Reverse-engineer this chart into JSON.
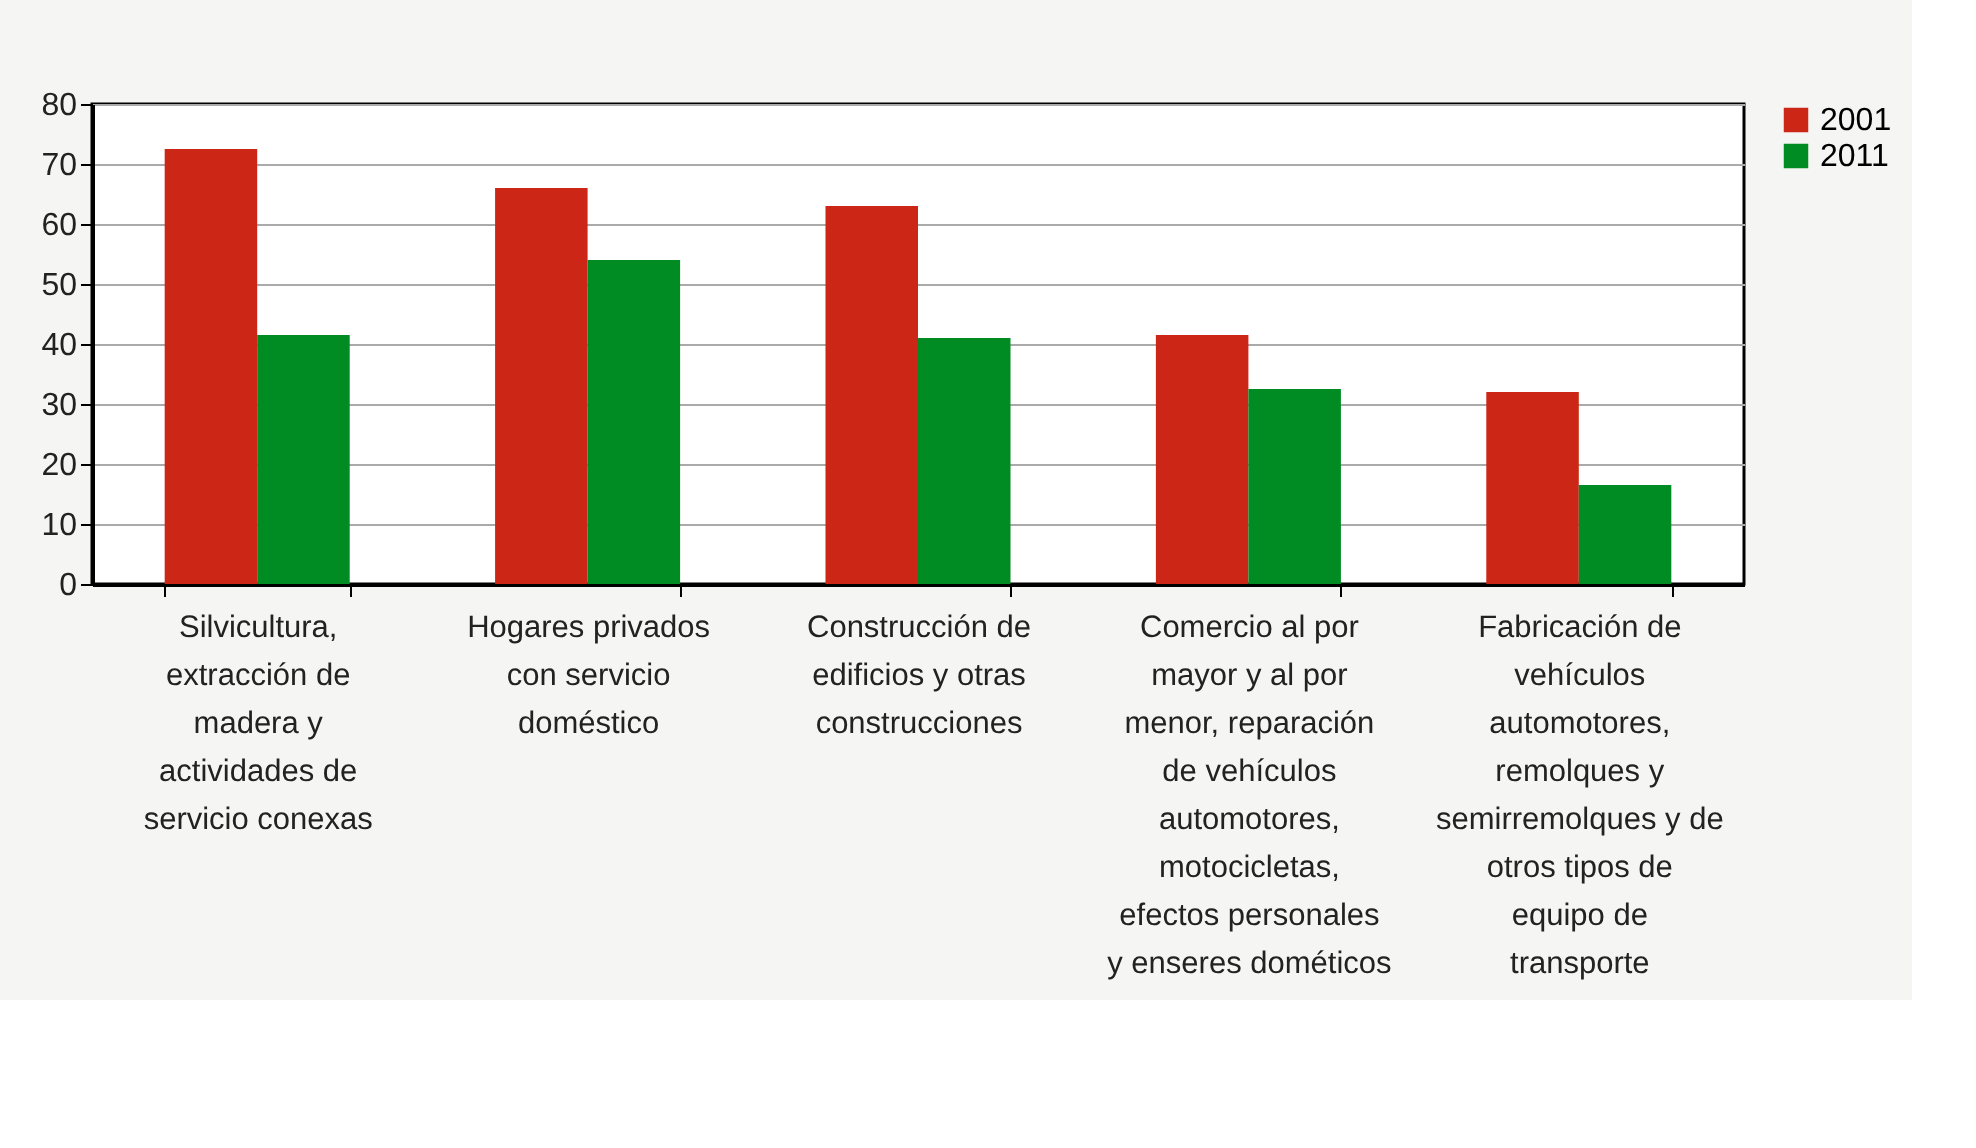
{
  "chart_data": {
    "type": "bar",
    "categories": [
      "Silvicultura, extracción de madera y actividades de servicio conexas",
      "Hogares privados con servicio doméstico",
      "Construcción de edificios y otras construcciones",
      "Comercio al por mayor y al por menor, reparación de vehículos automotores, motocicletas, efectos personales y enseres dométicos",
      "Fabricación de vehículos automotores, remolques y semirremolques y de otros tipos de equipo de transporte"
    ],
    "series": [
      {
        "name": "2001",
        "color": "#cc2616",
        "values": [
          72.5,
          66,
          63,
          41.5,
          32
        ]
      },
      {
        "name": "2011",
        "color": "#008c22",
        "values": [
          41.5,
          54,
          41,
          32.5,
          16.5
        ]
      }
    ],
    "ylim": [
      0,
      80
    ],
    "yticks": [
      0,
      10,
      20,
      30,
      40,
      50,
      60,
      70,
      80
    ],
    "grid": "y",
    "legend": "top right"
  }
}
